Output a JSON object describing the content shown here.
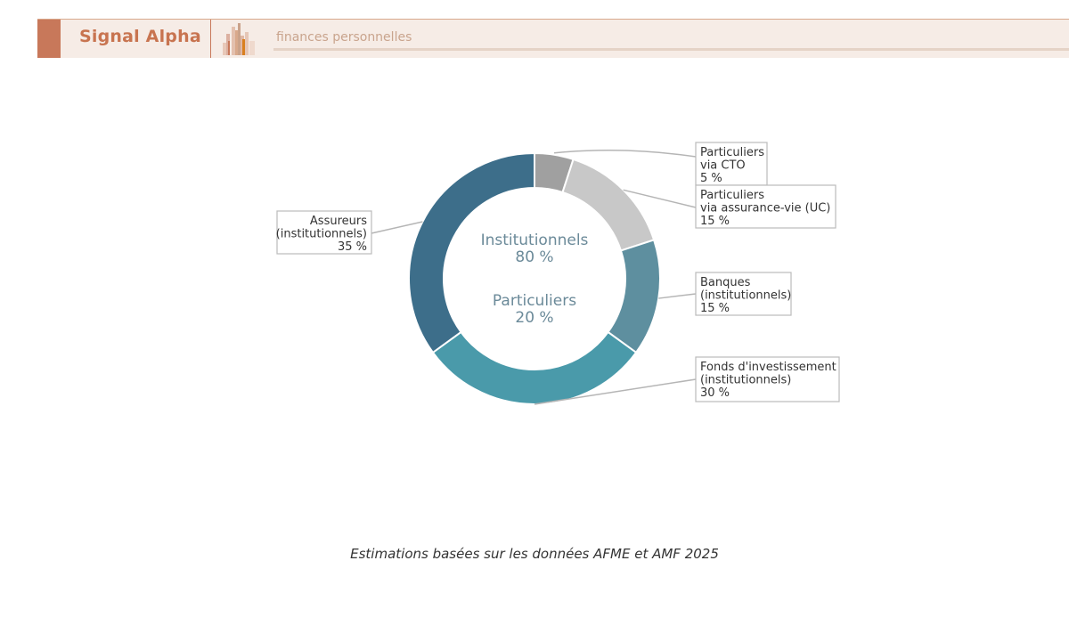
{
  "header": {
    "brand": "Signal Alpha",
    "tagline": "finances personnelles",
    "accent": "#c8785a",
    "logo_icon": "city-skyline-icon"
  },
  "chart_data": {
    "type": "pie",
    "donut": true,
    "center_text": {
      "line1": "Institutionnels",
      "line2": "80 %",
      "line3": "Particuliers",
      "line4": "20 %"
    },
    "slices": [
      {
        "label": [
          "Particuliers",
          "via CTO"
        ],
        "value": 5,
        "value_label": "5 %",
        "color": "#a0a0a0",
        "side": "right"
      },
      {
        "label": [
          "Particuliers",
          "via assurance-vie (UC)"
        ],
        "value": 15,
        "value_label": "15 %",
        "color": "#c8c8c8",
        "side": "right"
      },
      {
        "label": [
          "Banques",
          "(institutionnels)"
        ],
        "value": 15,
        "value_label": "15 %",
        "color": "#5e8f9f",
        "side": "right"
      },
      {
        "label": [
          "Fonds d'investissement",
          "(institutionnels)"
        ],
        "value": 30,
        "value_label": "30 %",
        "color": "#4a9aaa",
        "side": "right"
      },
      {
        "label": [
          "Assureurs",
          "(institutionnels)"
        ],
        "value": 35,
        "value_label": "35 %",
        "color": "#3d6e8a",
        "side": "left"
      }
    ]
  },
  "footnote": "Estimations basées sur les données AFME et AMF 2025"
}
